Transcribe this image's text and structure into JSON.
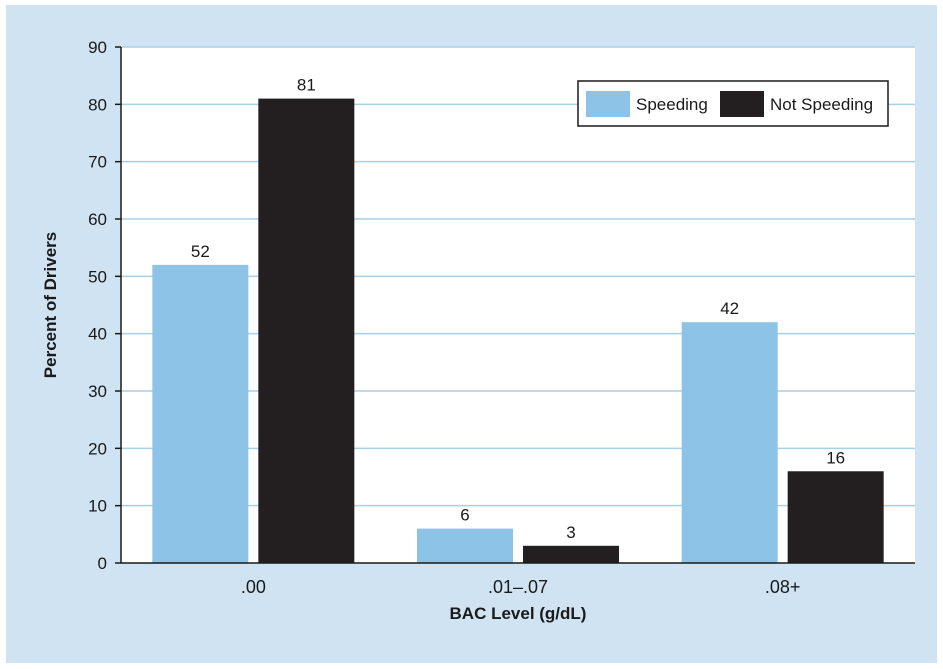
{
  "chart_data": {
    "type": "bar",
    "categories": [
      ".00",
      ".01–.07",
      ".08+"
    ],
    "series": [
      {
        "name": "Speeding",
        "values": [
          52,
          6,
          42
        ],
        "color": "#8ec3e8"
      },
      {
        "name": "Not Speeding",
        "values": [
          81,
          3,
          16
        ],
        "color": "#231f20"
      }
    ],
    "xlabel": "BAC Level (g/dL)",
    "ylabel": "Percent of Drivers",
    "ylim": [
      0,
      90
    ],
    "yticks": [
      0,
      10,
      20,
      30,
      40,
      50,
      60,
      70,
      80,
      90
    ],
    "grid": true,
    "legend_position": "top-right",
    "plot_background": "#ffffff",
    "frame_background": "#cfe3f2",
    "grid_color": "#a9cfe9"
  }
}
